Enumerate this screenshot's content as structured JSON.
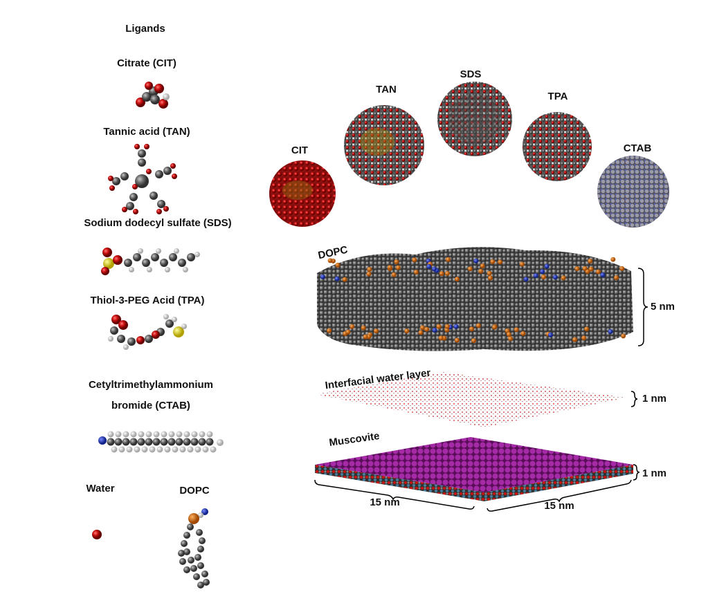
{
  "ligands": {
    "heading": "Ligands",
    "citrate": "Citrate (CIT)",
    "tannic": "Tannic acid (TAN)",
    "sds": "Sodium dodecyl sulfate (SDS)",
    "tpa": "Thiol-3-PEG Acid (TPA)",
    "ctab_line1": "Cetyltrimethylammonium",
    "ctab_line2": "bromide (CTAB)",
    "water": "Water",
    "dopc": "DOPC"
  },
  "nanoparticles": {
    "cit": "CIT",
    "tan": "TAN",
    "sds": "SDS",
    "tpa": "TPA",
    "ctab": "CTAB"
  },
  "system": {
    "dopc_label": "DOPC",
    "dopc_thickness": "5 nm",
    "water_label": "Interfacial water layer",
    "water_thickness": "1 nm",
    "muscovite_label": "Muscovite",
    "muscovite_thickness": "1 nm",
    "width_x": "15 nm",
    "width_y": "15 nm"
  },
  "colors": {
    "oxygen": "#cc1111",
    "carbon": "#6e6e6e",
    "hydrogen": "#e8e8e8",
    "sulfur": "#e6d71a",
    "nitrogen": "#2233bb",
    "phosphorus": "#d8700f",
    "muscovite": "#9b1f9b"
  }
}
